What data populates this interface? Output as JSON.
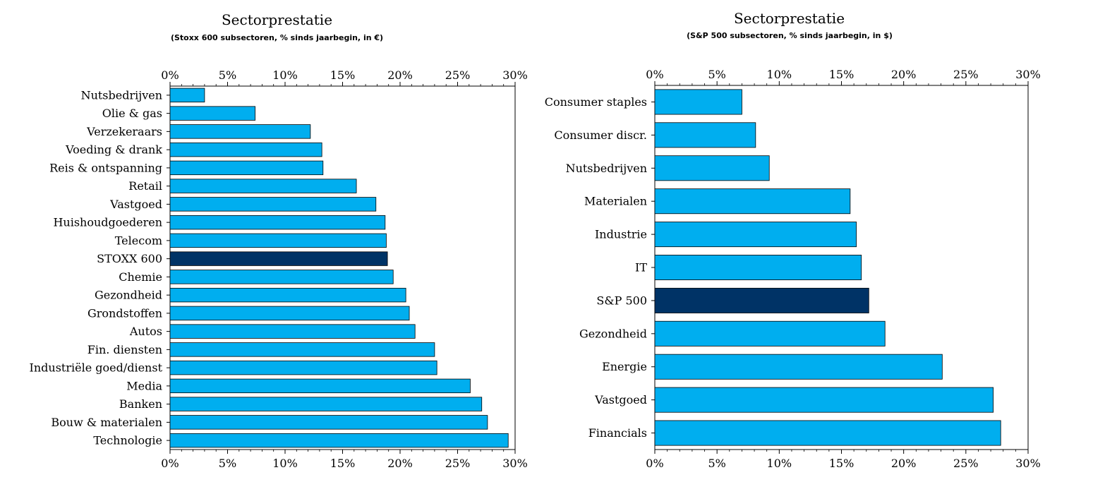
{
  "charts": [
    {
      "title": "Sectorprestatie",
      "subtitle": "(Stoxx 600 subsectoren, % sinds jaarbegin, in €)"
    },
    {
      "title": "Sectorprestatie",
      "subtitle": "(S&P 500 subsectoren, % sinds jaarbegin, in $)"
    }
  ],
  "colors": {
    "bar": "#00AEEF",
    "highlight": "#003366",
    "edge": "#000000"
  },
  "chart_data": [
    {
      "type": "bar",
      "orientation": "horizontal",
      "title": "Sectorprestatie",
      "subtitle": "(Stoxx 600 subsectoren, % sinds jaarbegin, in €)",
      "categories": [
        "Nutsbedrijven",
        "Olie & gas",
        "Verzekeraars",
        "Voeding & drank",
        "Reis & ontspanning",
        "Retail",
        "Vastgoed",
        "Huishoudgoederen",
        "Telecom",
        "STOXX 600",
        "Chemie",
        "Gezondheid",
        "Grondstoffen",
        "Autos",
        "Fin. diensten",
        "Industriële goed/dienst",
        "Media",
        "Banken",
        "Bouw & materialen",
        "Technologie"
      ],
      "values": [
        3.0,
        7.4,
        12.2,
        13.2,
        13.3,
        16.2,
        17.9,
        18.7,
        18.8,
        18.9,
        19.4,
        20.5,
        20.8,
        21.3,
        23.0,
        23.2,
        26.1,
        27.1,
        27.6,
        29.4
      ],
      "highlight": "STOXX 600",
      "xlim": [
        0,
        30
      ],
      "xticks": [
        "0%",
        "5%",
        "10%",
        "15%",
        "20%",
        "25%",
        "30%"
      ],
      "grid": false
    },
    {
      "type": "bar",
      "orientation": "horizontal",
      "title": "Sectorprestatie",
      "subtitle": "(S&P 500 subsectoren, % sinds jaarbegin, in $)",
      "categories": [
        "Consumer staples",
        "Consumer discr.",
        "Nutsbedrijven",
        "Materialen",
        "Industrie",
        "IT",
        "S&P 500",
        "Gezondheid",
        "Energie",
        "Vastgoed",
        "Financials"
      ],
      "values": [
        7.0,
        8.1,
        9.2,
        15.7,
        16.2,
        16.6,
        17.2,
        18.5,
        23.1,
        27.2,
        27.8
      ],
      "highlight": "S&P 500",
      "xlim": [
        0,
        30
      ],
      "xticks": [
        "0%",
        "5%",
        "10%",
        "15%",
        "20%",
        "25%",
        "30%"
      ],
      "grid": false
    }
  ]
}
